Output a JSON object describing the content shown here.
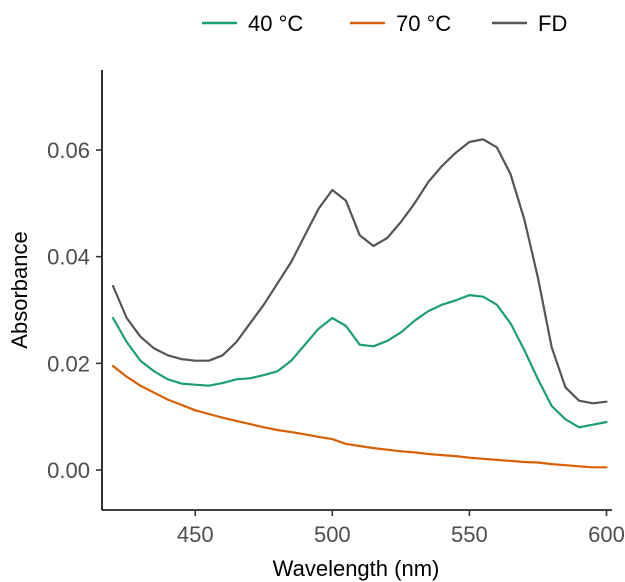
{
  "chart_data": {
    "type": "line",
    "xlabel": "Wavelength (nm)",
    "ylabel": "Absorbance",
    "xlim": [
      416,
      602
    ],
    "ylim": [
      -0.0075,
      0.075
    ],
    "xticks": [
      450,
      500,
      550,
      600
    ],
    "xtick_labels": [
      "450",
      "500",
      "550",
      "600"
    ],
    "yticks": [
      0.0,
      0.02,
      0.04,
      0.06
    ],
    "ytick_labels": [
      "0.00",
      "0.02",
      "0.04",
      "0.06"
    ],
    "grid": false,
    "legend_position": "top",
    "x": [
      420,
      425,
      430,
      435,
      440,
      445,
      450,
      455,
      460,
      465,
      470,
      475,
      480,
      485,
      490,
      495,
      500,
      505,
      510,
      515,
      520,
      525,
      530,
      535,
      540,
      545,
      550,
      555,
      560,
      565,
      570,
      575,
      580,
      585,
      590,
      595,
      600
    ],
    "series": [
      {
        "name": "40 °C",
        "color": "#1b9e77",
        "values": [
          0.0285,
          0.024,
          0.0205,
          0.0185,
          0.017,
          0.0162,
          0.016,
          0.0158,
          0.0163,
          0.017,
          0.0172,
          0.0178,
          0.0185,
          0.0205,
          0.0235,
          0.0265,
          0.0285,
          0.027,
          0.0235,
          0.0232,
          0.0242,
          0.0258,
          0.028,
          0.0298,
          0.031,
          0.0318,
          0.0328,
          0.0325,
          0.031,
          0.0275,
          0.0225,
          0.017,
          0.012,
          0.0095,
          0.008,
          0.0085,
          0.009
        ]
      },
      {
        "name": "70 °C",
        "color": "#d95f02",
        "values": [
          0.0195,
          0.0175,
          0.0158,
          0.0145,
          0.0132,
          0.0122,
          0.0112,
          0.0105,
          0.0098,
          0.0092,
          0.0086,
          0.008,
          0.0075,
          0.0071,
          0.0067,
          0.0062,
          0.0058,
          0.0049,
          0.0045,
          0.0041,
          0.0038,
          0.0035,
          0.0033,
          0.003,
          0.0028,
          0.0026,
          0.0023,
          0.0021,
          0.0019,
          0.0017,
          0.0015,
          0.0014,
          0.0011,
          0.0009,
          0.0007,
          0.0005,
          0.0005
        ]
      },
      {
        "name": "FD",
        "color": "#555555",
        "values": [
          0.0345,
          0.0285,
          0.025,
          0.0228,
          0.0215,
          0.0208,
          0.0205,
          0.0205,
          0.0215,
          0.024,
          0.0275,
          0.031,
          0.035,
          0.039,
          0.044,
          0.049,
          0.0525,
          0.0505,
          0.044,
          0.042,
          0.0435,
          0.0465,
          0.05,
          0.054,
          0.057,
          0.0595,
          0.0615,
          0.062,
          0.0605,
          0.0555,
          0.047,
          0.036,
          0.023,
          0.0155,
          0.013,
          0.0125,
          0.0128
        ]
      }
    ]
  }
}
